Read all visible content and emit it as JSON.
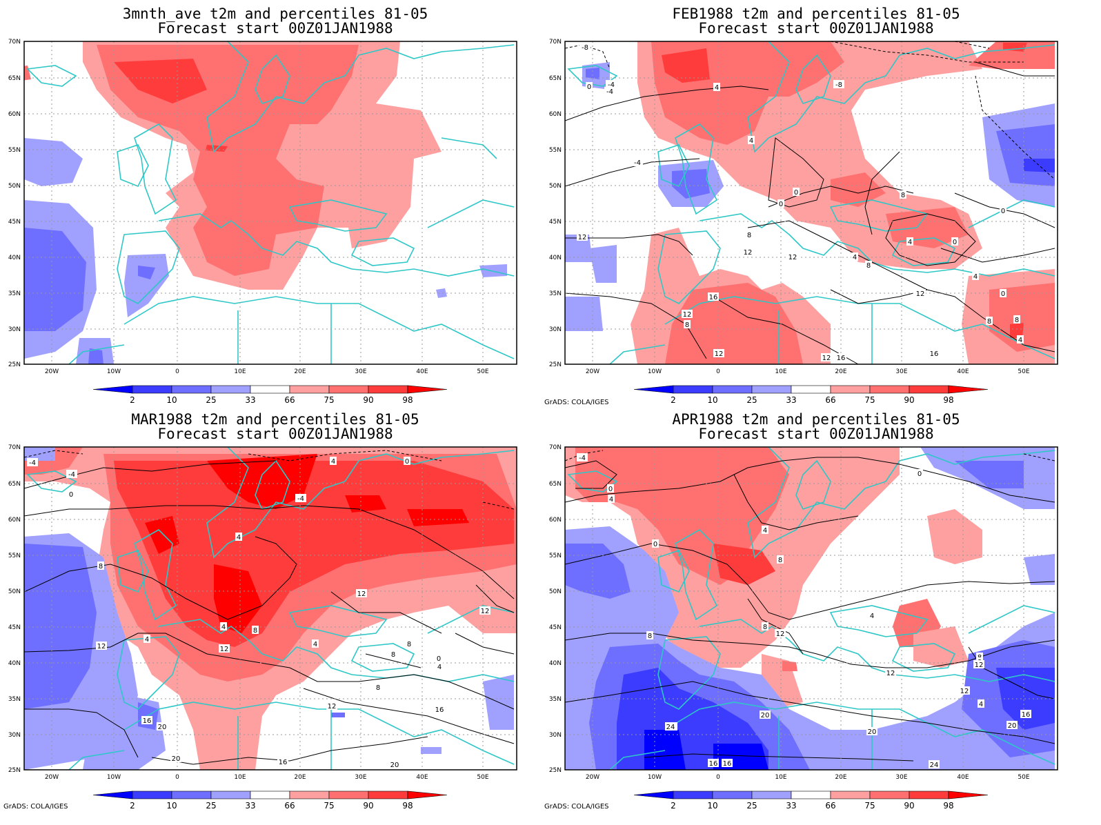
{
  "panels": [
    {
      "title": "3mnth_ave t2m and percentiles 81-05",
      "subtitle": "Forecast start 00Z01JAN1988",
      "credit": ""
    },
    {
      "title": "FEB1988 t2m and percentiles 81-05",
      "subtitle": "Forecast start 00Z01JAN1988",
      "credit": "GrADS: COLA/IGES"
    },
    {
      "title": "MAR1988 t2m and percentiles 81-05",
      "subtitle": "Forecast start 00Z01JAN1988",
      "credit": "GrADS: COLA/IGES"
    },
    {
      "title": "APR1988 t2m and percentiles 81-05",
      "subtitle": "Forecast start 00Z01JAN1988",
      "credit": "GrADS: COLA/IGES"
    }
  ],
  "lat_labels": [
    "70N",
    "65N",
    "60N",
    "55N",
    "50N",
    "45N",
    "40N",
    "35N",
    "30N",
    "25N"
  ],
  "lon_labels": [
    "20W",
    "10W",
    "0",
    "10E",
    "20E",
    "30E",
    "40E",
    "50E"
  ],
  "colorbar": {
    "labels": [
      "2",
      "10",
      "25",
      "33",
      "66",
      "75",
      "90",
      "98"
    ],
    "colors": [
      "#0000ff",
      "#3c3cff",
      "#6e6eff",
      "#a0a0ff",
      "#ffffff",
      "#ffa0a0",
      "#ff7070",
      "#ff3c3c",
      "#ff0000"
    ]
  },
  "colors": {
    "coastline": "#2ec7c7",
    "contour": "#000000",
    "grid": "#999999"
  },
  "contour_labels": {
    "p1": [
      "-8",
      "-4",
      "0",
      "4",
      "-4",
      "-8",
      "4",
      "-4",
      "0",
      "8",
      "0",
      "0",
      "0",
      "12",
      "8",
      "12",
      "12",
      "4",
      "4",
      "8",
      "0",
      "4",
      "12",
      "8",
      "8",
      "4",
      "12",
      "16",
      "12",
      "16",
      "12",
      "8",
      "12",
      "16"
    ],
    "p2": [
      "-4",
      "0",
      "-4",
      "4",
      "0",
      "-4",
      "4",
      "8",
      "12",
      "12",
      "4",
      "4",
      "8",
      "8",
      "12",
      "4",
      "8",
      "0",
      "4",
      "12",
      "16",
      "20",
      "8",
      "12",
      "16",
      "20",
      "16",
      "20"
    ],
    "p3": [
      "-4",
      "0",
      "4",
      "0",
      "4",
      "0",
      "8",
      "8",
      "4",
      "8",
      "8",
      "12",
      "8",
      "12",
      "12",
      "12",
      "4",
      "16",
      "20",
      "12",
      "20",
      "20",
      "24",
      "16",
      "16",
      "24"
    ]
  }
}
